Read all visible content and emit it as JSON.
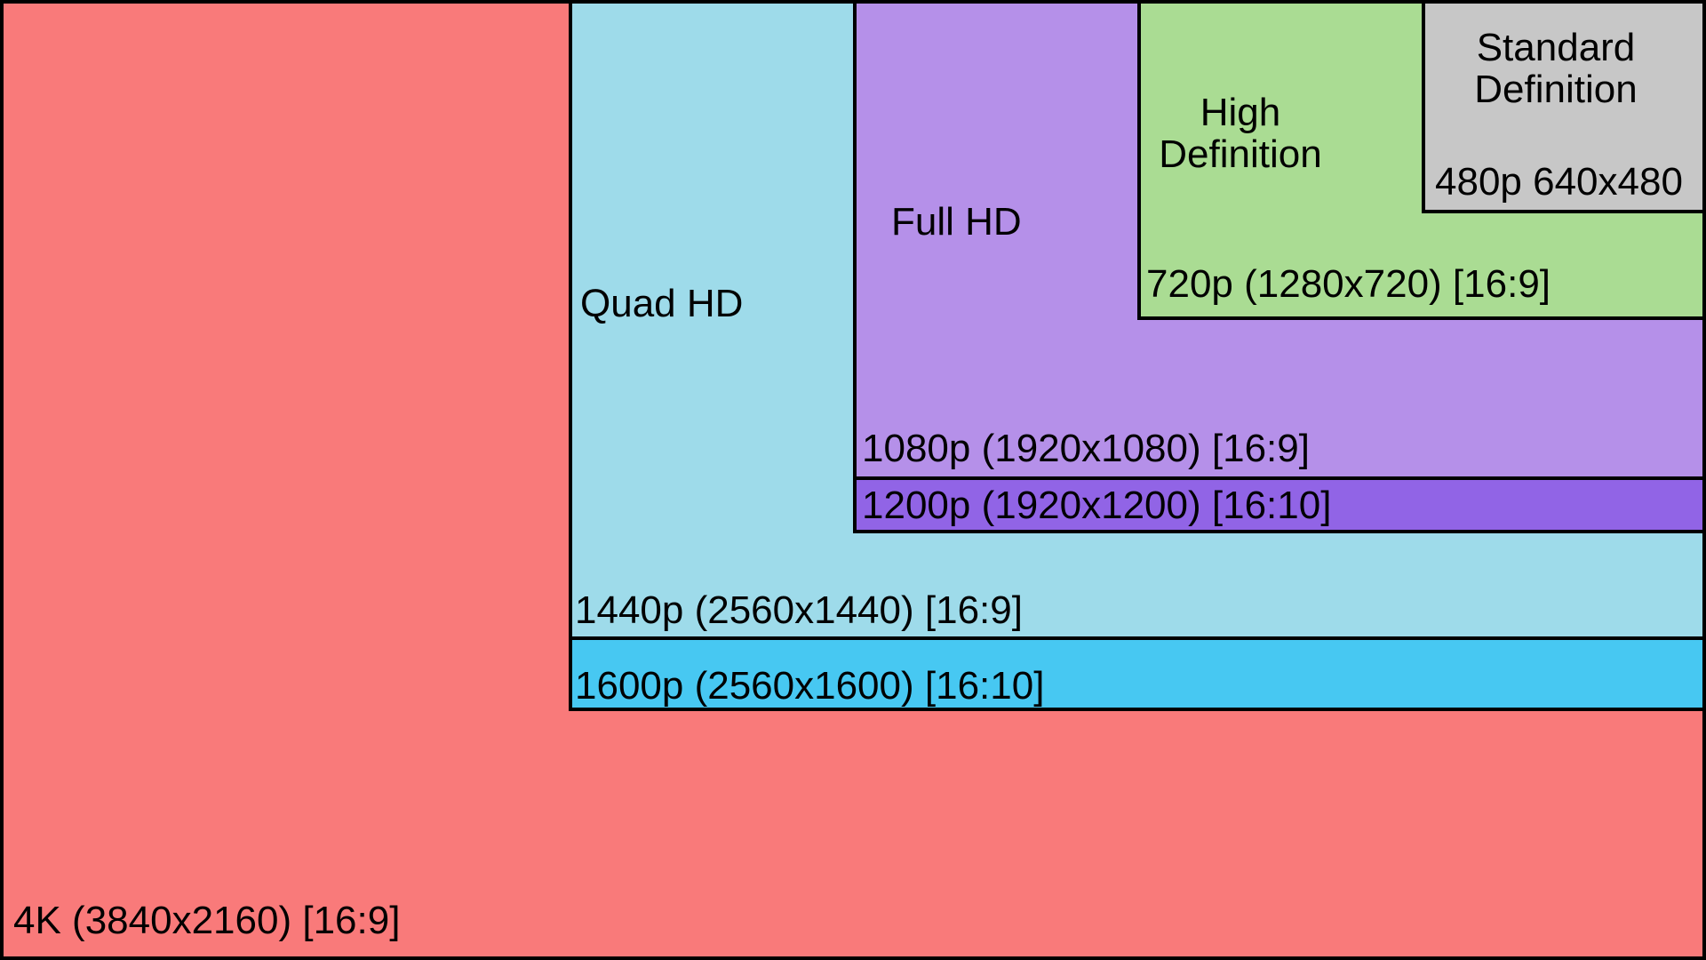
{
  "colors": {
    "border": "#000000",
    "text": "#000000",
    "background_4k": "#f97a7a",
    "background_1600p": "#47c8f2",
    "background_1440p": "#9edbea",
    "background_1200p": "#9164e6",
    "background_1080p": "#b590e9",
    "background_720p": "#aadc93",
    "background_480p": "#c7c7c7"
  },
  "regions": {
    "res4k": {
      "label": "4K (3840x2160) [16:9]",
      "fill": "#f97a7a"
    },
    "res1600p": {
      "label": "1600p (2560x1600) [16:10]",
      "fill": "#47c8f2"
    },
    "res1440p": {
      "name": "Quad HD",
      "label": "1440p (2560x1440) [16:9]",
      "fill": "#9edbea"
    },
    "res1200p": {
      "label": "1200p (1920x1200) [16:10]",
      "fill": "#9164e6"
    },
    "res1080p": {
      "name": "Full HD",
      "label": "1080p (1920x1080) [16:9]",
      "fill": "#b590e9"
    },
    "res720p": {
      "name_line1": "High",
      "name_line2": "Definition",
      "label": "720p (1280x720) [16:9]",
      "fill": "#aadc93"
    },
    "res480p": {
      "name_line1": "Standard",
      "name_line2": "Definition",
      "label": "480p 640x480",
      "fill": "#c7c7c7"
    }
  }
}
